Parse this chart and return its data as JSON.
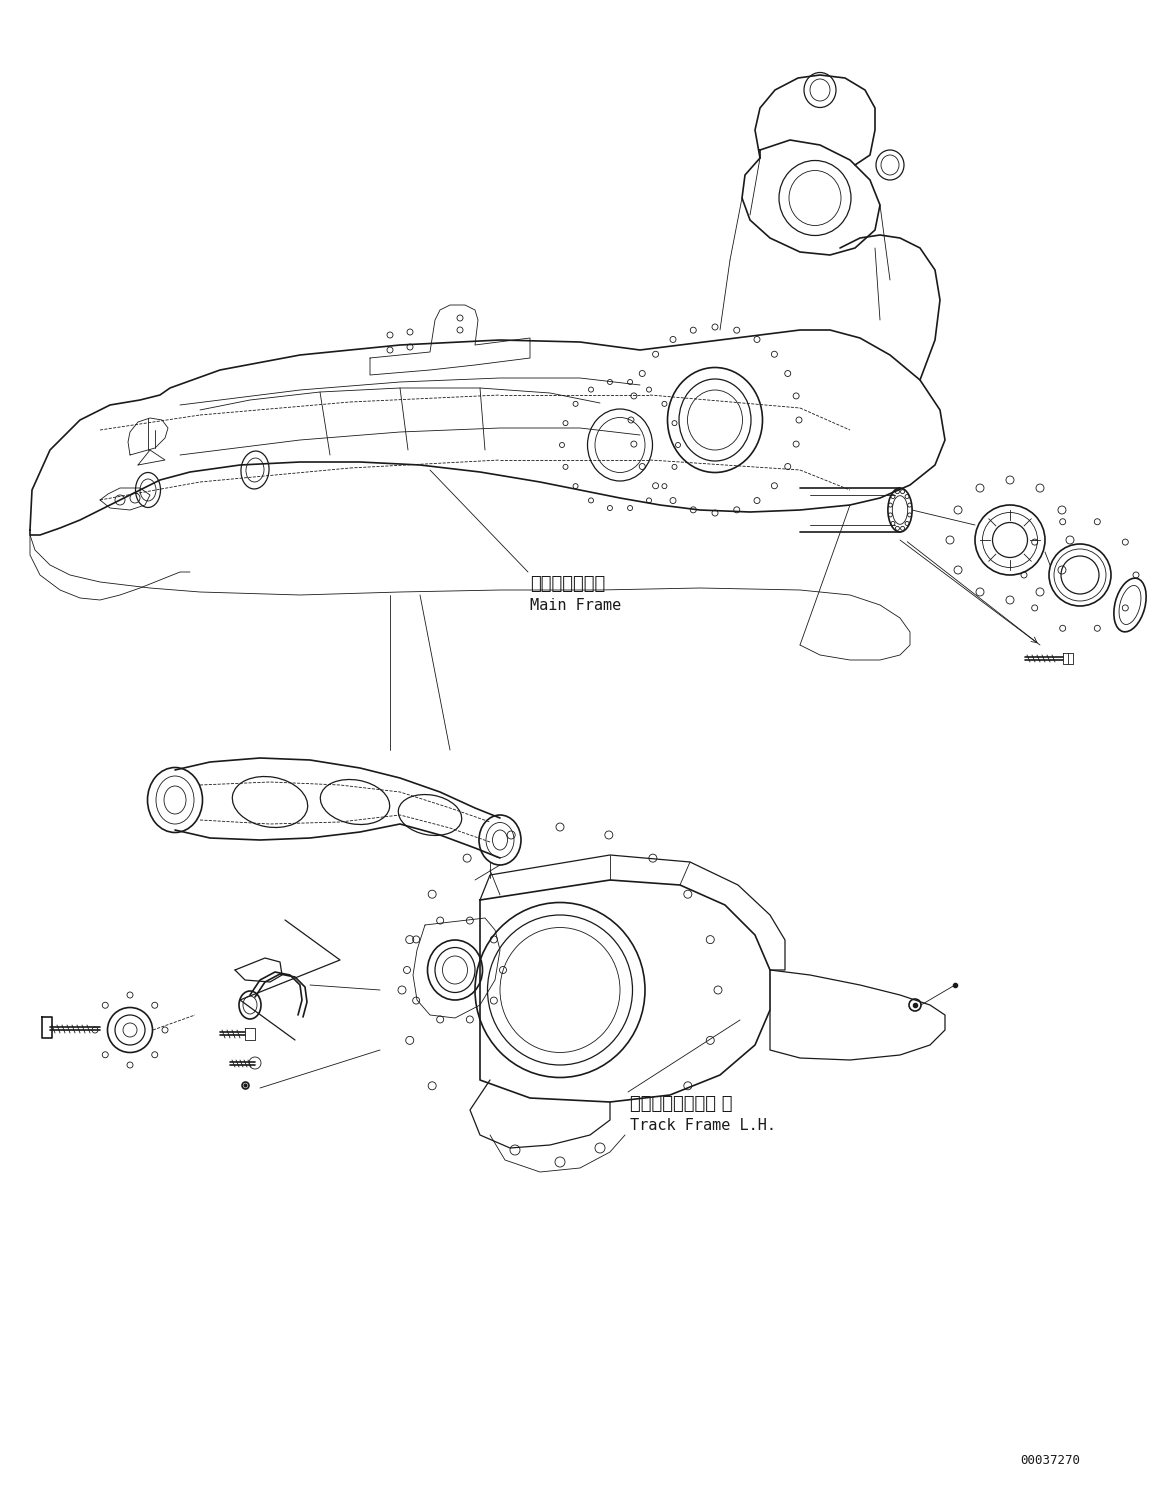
{
  "bg_color": "#ffffff",
  "line_color": "#1a1a1a",
  "fig_width": 11.68,
  "fig_height": 14.87,
  "dpi": 100,
  "label_main_frame_jp": "メインフレーム",
  "label_main_frame_en": "Main Frame",
  "label_track_frame_jp": "トラックフレーム 左",
  "label_track_frame_en": "Track Frame L.H.",
  "part_number": "00037270",
  "lw_main": 1.2,
  "lw_thin": 0.6,
  "lw_med": 0.9
}
